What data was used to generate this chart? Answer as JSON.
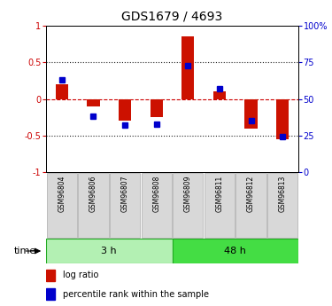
{
  "title": "GDS1679 / 4693",
  "samples": [
    "GSM96804",
    "GSM96806",
    "GSM96807",
    "GSM96808",
    "GSM96809",
    "GSM96811",
    "GSM96812",
    "GSM96813"
  ],
  "log_ratio": [
    0.2,
    -0.1,
    -0.3,
    -0.25,
    0.85,
    0.1,
    -0.4,
    -0.55
  ],
  "percentile_rank": [
    63,
    38,
    32,
    33,
    73,
    57,
    35,
    24
  ],
  "groups": [
    {
      "label": "3 h",
      "start": 0,
      "end": 4,
      "color": "#b3f0b3"
    },
    {
      "label": "48 h",
      "start": 4,
      "end": 8,
      "color": "#44dd44"
    }
  ],
  "bar_color": "#cc1100",
  "dot_color": "#0000cc",
  "ylim_left": [
    -1,
    1
  ],
  "ylim_right": [
    0,
    100
  ],
  "yticks_left": [
    -1,
    -0.5,
    0,
    0.5,
    1
  ],
  "ytick_labels_left": [
    "-1",
    "-0.5",
    "0",
    "0.5",
    "1"
  ],
  "yticks_right": [
    0,
    25,
    50,
    75,
    100
  ],
  "ytick_labels_right": [
    "0",
    "25",
    "50",
    "75",
    "100%"
  ],
  "hlines": [
    0.5,
    -0.5
  ],
  "zero_line_color": "#cc0000",
  "grid_line_color": "#222222",
  "bg_color": "#ffffff",
  "box_color": "#d8d8d8",
  "time_label": "time",
  "legend_log_ratio": "log ratio",
  "legend_percentile": "percentile rank within the sample"
}
